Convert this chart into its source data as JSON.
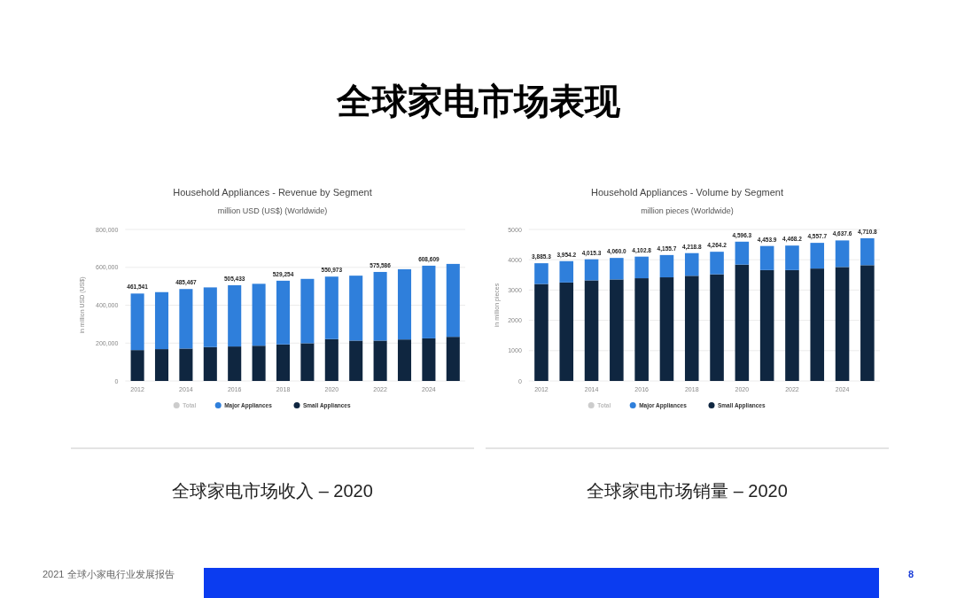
{
  "chart_data": [
    {
      "type": "other",
      "title": "全球家电市场表现",
      "annotations": [
        "2021 全球小家电行业发展报告",
        "8"
      ]
    },
    {
      "type": "bar",
      "stacked": true,
      "title": "Household Appliances - Revenue by Segment",
      "subtitle": "million USD (US$) (Worldwide)",
      "ylabel": "in million USD (US$)",
      "categories": [
        "2012",
        null,
        "2014",
        null,
        "2016",
        null,
        "2018",
        null,
        "2020",
        null,
        "2022",
        null,
        "2024",
        null
      ],
      "series": [
        {
          "name": "Small Appliances",
          "color": "#0f2640",
          "values": [
            163000,
            168000,
            171000,
            179000,
            182000,
            186000,
            193000,
            199000,
            221000,
            213000,
            213000,
            219000,
            225000,
            233000
          ]
        },
        {
          "name": "Major Appliances",
          "color": "#2f7fdb",
          "values": [
            298541,
            301000,
            314467,
            315000,
            323433,
            327000,
            336254,
            340000,
            329973,
            343000,
            362586,
            371000,
            383609,
            385000
          ]
        },
        {
          "name": "Total",
          "color": "#cccccc",
          "values": [
            null,
            null,
            null,
            null,
            null,
            null,
            null,
            null,
            null,
            null,
            null,
            null,
            null,
            null
          ]
        }
      ],
      "totals": [
        "461,541",
        null,
        "485,467",
        null,
        "505,433",
        null,
        "529,254",
        null,
        "550,973",
        null,
        "575,586",
        null,
        "608,609",
        null
      ],
      "ylim": [
        0,
        800000
      ],
      "yticks": [
        {
          "value": 0,
          "label": "0"
        },
        {
          "value": 200000,
          "label": "200,000"
        },
        {
          "value": 400000,
          "label": "400,000"
        },
        {
          "value": 600000,
          "label": "600,000"
        },
        {
          "value": 800000,
          "label": "800,000"
        }
      ],
      "grid": "y",
      "legend": "bottom",
      "annotations": [
        "全球家电市场收入 – 2020"
      ]
    },
    {
      "type": "bar",
      "stacked": true,
      "title": "Household Appliances - Volume by Segment",
      "subtitle": "million pieces (Worldwide)",
      "ylabel": "in million pieces",
      "categories": [
        "2012",
        null,
        "2014",
        null,
        "2016",
        null,
        "2018",
        null,
        "2020",
        null,
        "2022",
        null,
        "2024",
        null
      ],
      "series": [
        {
          "name": "Small Appliances",
          "color": "#0f2640",
          "values": [
            3200,
            3250,
            3320,
            3350,
            3390,
            3420,
            3470,
            3520,
            3840,
            3660,
            3660,
            3710,
            3760,
            3820
          ]
        },
        {
          "name": "Major Appliances",
          "color": "#2f7fdb",
          "values": [
            685.3,
            704.2,
            695.3,
            710.0,
            712.8,
            735.7,
            748.8,
            744.2,
            756.3,
            793.9,
            808.2,
            847.7,
            877.6,
            890.8
          ]
        },
        {
          "name": "Total",
          "color": "#cccccc",
          "values": [
            null,
            null,
            null,
            null,
            null,
            null,
            null,
            null,
            null,
            null,
            null,
            null,
            null,
            null
          ]
        }
      ],
      "totals": [
        "3,885.3",
        "3,954.2",
        "4,015.3",
        "4,060.0",
        "4,102.8",
        "4,155.7",
        "4,218.8",
        "4,264.2",
        "4,596.3",
        "4,453.9",
        "4,468.2",
        "4,557.7",
        "4,637.6",
        "4,710.8"
      ],
      "ylim": [
        0,
        5000
      ],
      "yticks": [
        0,
        1000,
        2000,
        3000,
        4000,
        5000
      ],
      "grid": "y",
      "legend": "bottom",
      "annotations": [
        "全球家电市场销量 – 2020"
      ]
    }
  ]
}
